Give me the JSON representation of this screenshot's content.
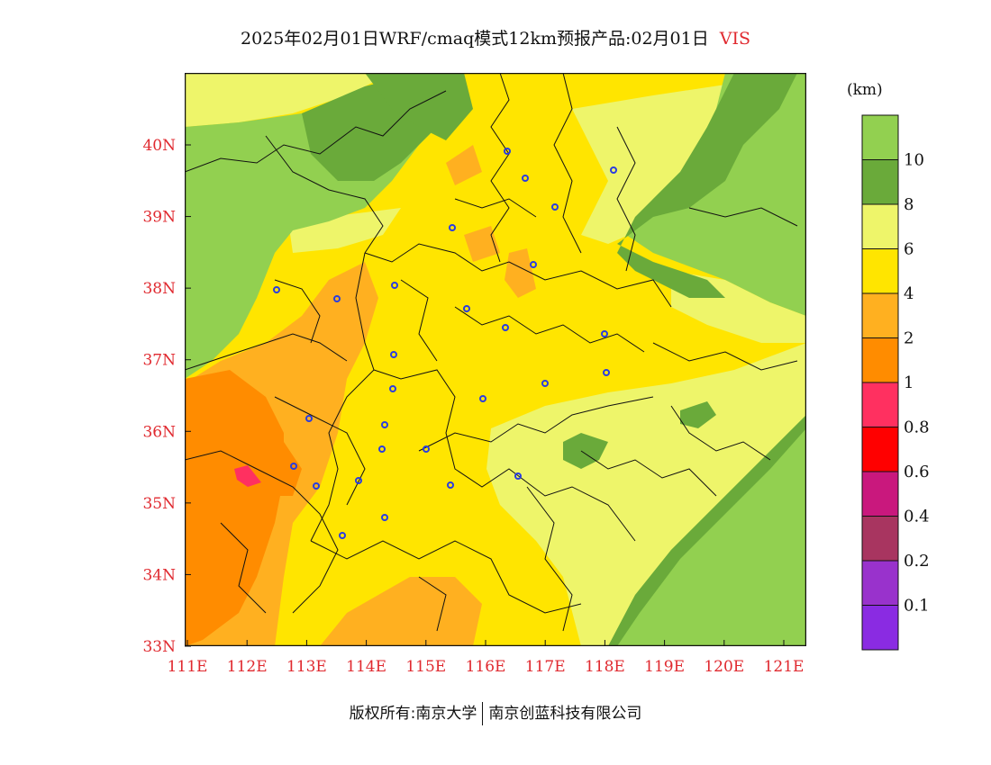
{
  "header": {
    "title": "2025年02月01日WRF/cmaq模式12km预报产品:02月01日",
    "variable": "VIS"
  },
  "colorbar": {
    "units": "(km)",
    "bins": [
      {
        "label": "10",
        "color": "#92d050"
      },
      {
        "label": "8",
        "color": "#6aaa3a"
      },
      {
        "label": "6",
        "color": "#eef56a"
      },
      {
        "label": "4",
        "color": "#ffe500"
      },
      {
        "label": "2",
        "color": "#ffb020"
      },
      {
        "label": "1",
        "color": "#ff8c00"
      },
      {
        "label": "0.8",
        "color": "#ff3060"
      },
      {
        "label": "0.6",
        "color": "#ff0000"
      },
      {
        "label": "0.4",
        "color": "#c9187d"
      },
      {
        "label": "0.2",
        "color": "#a83560"
      },
      {
        "label": "0.1",
        "color": "#9932cc"
      },
      {
        "label": "",
        "color": "#8a2be2"
      }
    ]
  },
  "map": {
    "x_ticks": [
      "111E",
      "112E",
      "113E",
      "114E",
      "115E",
      "116E",
      "117E",
      "118E",
      "119E",
      "120E",
      "121E"
    ],
    "y_ticks": [
      "40N",
      "39N",
      "38N",
      "37N",
      "36N",
      "35N",
      "34N",
      "33N"
    ]
  },
  "footer": {
    "copyright": "版权所有:南京大学",
    "company": "南京创蓝科技有限公司"
  }
}
